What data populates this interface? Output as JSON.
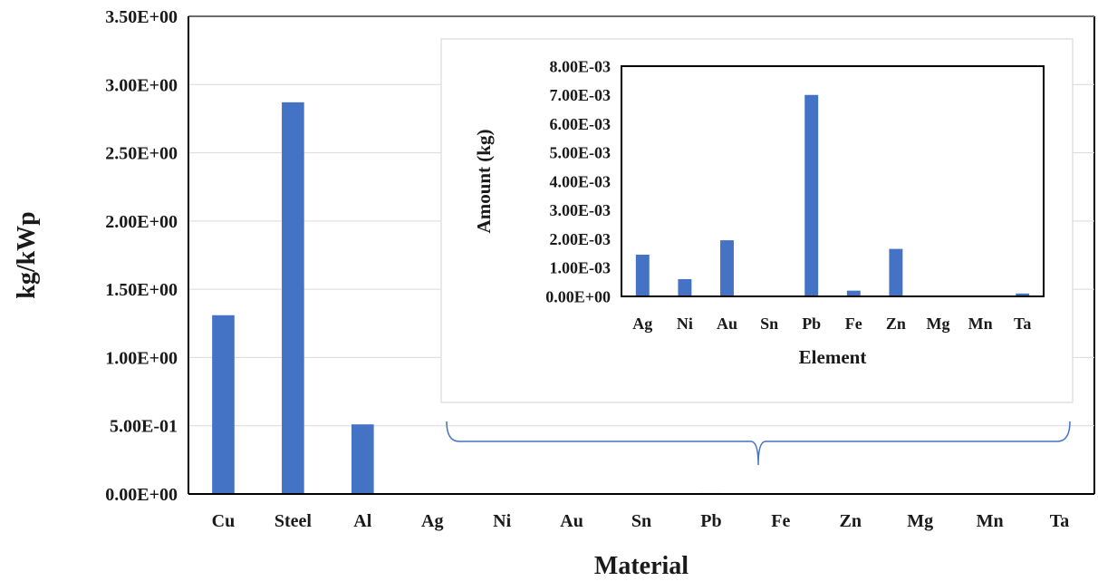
{
  "colors": {
    "bar": "#4472c4",
    "grid": "#d9d9d9",
    "axis": "#000000",
    "inset_border": "#d9d9d9",
    "brace": "#4472c4",
    "text": "#1a1a1a"
  },
  "chart_data": [
    {
      "type": "bar",
      "title": "",
      "xlabel": "Material",
      "ylabel": "kg/kWp",
      "categories": [
        "Cu",
        "Steel",
        "Al",
        "Ag",
        "Ni",
        "Au",
        "Sn",
        "Pb",
        "Fe",
        "Zn",
        "Mg",
        "Mn",
        "Ta"
      ],
      "values": [
        1.31,
        2.87,
        0.51,
        0.00145,
        0.0006,
        0.00195,
        0.0,
        0.007,
        0.0002,
        0.00165,
        0.0,
        0.0,
        0.0001
      ],
      "ylim": [
        0,
        3.5
      ],
      "yticks": [
        0,
        0.5,
        1.0,
        1.5,
        2.0,
        2.5,
        3.0,
        3.5
      ],
      "ytick_labels": [
        "0.00E+00",
        "5.00E-01",
        "1.00E+00",
        "1.50E+00",
        "2.00E+00",
        "2.50E+00",
        "3.00E+00",
        "3.50E+00"
      ],
      "grid": true,
      "legend": "none"
    },
    {
      "type": "bar",
      "title": "",
      "xlabel": "Element",
      "ylabel": "Amount (kg)",
      "categories": [
        "Ag",
        "Ni",
        "Au",
        "Sn",
        "Pb",
        "Fe",
        "Zn",
        "Mg",
        "Mn",
        "Ta"
      ],
      "values": [
        0.00145,
        0.0006,
        0.00195,
        0.0,
        0.007,
        0.0002,
        0.00165,
        0.0,
        0.0,
        0.0001
      ],
      "ylim": [
        0,
        0.008
      ],
      "yticks": [
        0,
        0.001,
        0.002,
        0.003,
        0.004,
        0.005,
        0.006,
        0.007,
        0.008
      ],
      "ytick_labels": [
        "0.00E+00",
        "1.00E-03",
        "2.00E-03",
        "3.00E-03",
        "4.00E-03",
        "5.00E-03",
        "6.00E-03",
        "7.00E-03",
        "8.00E-03"
      ],
      "grid": false,
      "legend": "none"
    }
  ]
}
